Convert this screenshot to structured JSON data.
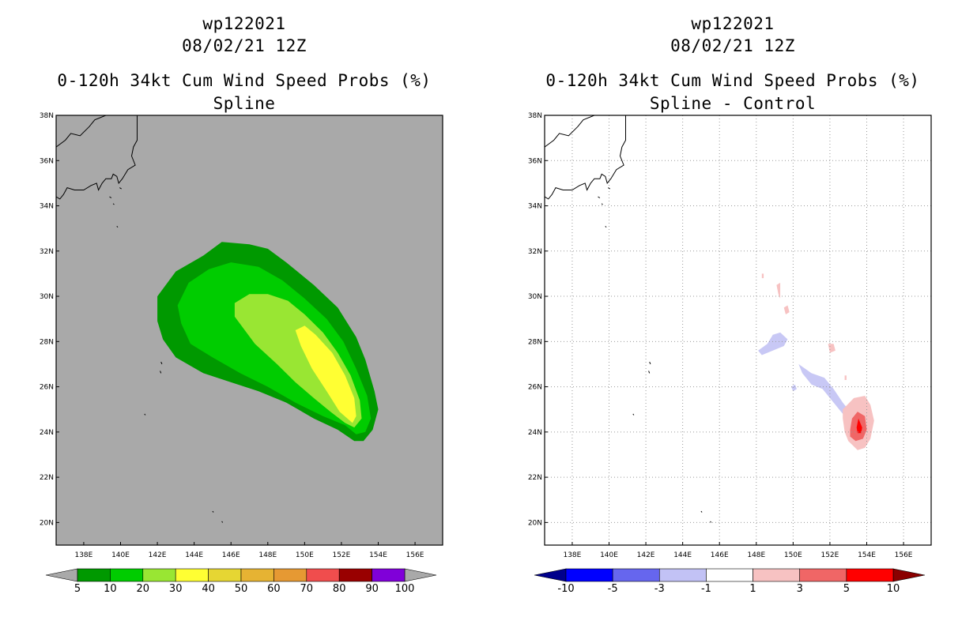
{
  "chart_data": [
    {
      "type": "heatmap",
      "id": "left",
      "title_lines": [
        "wp122021",
        "08/02/21 12Z",
        "0-120h 34kt Cum Wind Speed Probs (%)",
        "Spline"
      ],
      "xlabels": [
        "138E",
        "140E",
        "142E",
        "144E",
        "146E",
        "148E",
        "150E",
        "152E",
        "154E",
        "156E"
      ],
      "ylabels": [
        "20N",
        "22N",
        "24N",
        "26N",
        "28N",
        "30N",
        "32N",
        "34N",
        "36N",
        "38N"
      ],
      "xlim": [
        136.5,
        157.5
      ],
      "ylim": [
        19,
        38
      ],
      "grid": false,
      "background": "#a9a9a9",
      "colorbar": {
        "levels": [
          "5",
          "10",
          "20",
          "30",
          "40",
          "50",
          "60",
          "70",
          "80",
          "90",
          "100"
        ],
        "colors": [
          "#009900",
          "#00cc00",
          "#99e633",
          "#ffff33",
          "#e6d633",
          "#e6b333",
          "#e69933",
          "#f04d4d",
          "#990000",
          "#8000d9"
        ],
        "end_left": "#a9a9a9",
        "end_right": "#a9a9a9"
      },
      "contours": [
        {
          "level": "5-10",
          "color": "#009900",
          "points": [
            [
              142,
              28.9
            ],
            [
              142,
              30
            ],
            [
              143,
              31.1
            ],
            [
              144.5,
              31.8
            ],
            [
              145.5,
              32.4
            ],
            [
              147,
              32.3
            ],
            [
              148,
              32.1
            ],
            [
              149,
              31.5
            ],
            [
              150.5,
              30.5
            ],
            [
              151.8,
              29.5
            ],
            [
              152.8,
              28.2
            ],
            [
              153.3,
              27.2
            ],
            [
              153.8,
              25.8
            ],
            [
              154,
              25
            ],
            [
              153.7,
              24.1
            ],
            [
              153.2,
              23.6
            ],
            [
              152.7,
              23.6
            ],
            [
              151.8,
              24.1
            ],
            [
              150.5,
              24.6
            ],
            [
              149,
              25.3
            ],
            [
              147.5,
              25.8
            ],
            [
              146,
              26.2
            ],
            [
              144.5,
              26.6
            ],
            [
              143,
              27.3
            ],
            [
              142.3,
              28.1
            ]
          ]
        },
        {
          "level": "10-20",
          "color": "#00cc00",
          "points": [
            [
              143.3,
              28.8
            ],
            [
              143.1,
              29.6
            ],
            [
              143.7,
              30.6
            ],
            [
              144.8,
              31.2
            ],
            [
              146,
              31.5
            ],
            [
              147.5,
              31.3
            ],
            [
              148.8,
              30.7
            ],
            [
              150,
              29.9
            ],
            [
              151.2,
              29
            ],
            [
              152.1,
              28
            ],
            [
              152.8,
              26.8
            ],
            [
              153.4,
              25.6
            ],
            [
              153.6,
              24.6
            ],
            [
              153.3,
              24
            ],
            [
              152.8,
              23.9
            ],
            [
              152.2,
              24.3
            ],
            [
              151,
              24.7
            ],
            [
              149.5,
              25.3
            ],
            [
              148,
              26
            ],
            [
              146.5,
              26.6
            ],
            [
              145,
              27.3
            ],
            [
              143.8,
              27.9
            ]
          ]
        },
        {
          "level": "20-30",
          "color": "#99e633",
          "points": [
            [
              146.2,
              29.1
            ],
            [
              146.2,
              29.7
            ],
            [
              147,
              30.1
            ],
            [
              148,
              30.1
            ],
            [
              149.1,
              29.8
            ],
            [
              150,
              29.2
            ],
            [
              151,
              28.4
            ],
            [
              151.8,
              27.5
            ],
            [
              152.5,
              26.5
            ],
            [
              153,
              25.4
            ],
            [
              153.1,
              24.6
            ],
            [
              152.7,
              24.2
            ],
            [
              152.2,
              24.4
            ],
            [
              151.4,
              24.9
            ],
            [
              150.5,
              25.5
            ],
            [
              149.5,
              26.2
            ],
            [
              148.5,
              27
            ],
            [
              147.3,
              27.9
            ]
          ]
        },
        {
          "level": "30-40",
          "color": "#ffff33",
          "points": [
            [
              149.5,
              28.5
            ],
            [
              149.8,
              27.8
            ],
            [
              150.4,
              26.8
            ],
            [
              151.2,
              25.8
            ],
            [
              151.9,
              24.9
            ],
            [
              152.6,
              24.4
            ],
            [
              152.8,
              24.7
            ],
            [
              152.7,
              25.5
            ],
            [
              152.2,
              26.5
            ],
            [
              151.5,
              27.5
            ],
            [
              150.6,
              28.3
            ],
            [
              150,
              28.7
            ]
          ]
        }
      ]
    },
    {
      "type": "heatmap",
      "id": "right",
      "title_lines": [
        "wp122021",
        "08/02/21 12Z",
        "0-120h 34kt Cum Wind Speed Probs (%)",
        "Spline - Control"
      ],
      "xlabels": [
        "138E",
        "140E",
        "142E",
        "144E",
        "146E",
        "148E",
        "150E",
        "152E",
        "154E",
        "156E"
      ],
      "ylabels": [
        "20N",
        "22N",
        "24N",
        "26N",
        "28N",
        "30N",
        "32N",
        "34N",
        "36N",
        "38N"
      ],
      "xlim": [
        136.5,
        157.5
      ],
      "ylim": [
        19,
        38
      ],
      "grid": true,
      "background": "#ffffff",
      "colorbar": {
        "levels": [
          "-10",
          "-5",
          "-3",
          "-1",
          "1",
          "3",
          "5",
          "10"
        ],
        "colors": [
          "#0000ff",
          "#6666ee",
          "#c2c2f5",
          "#ffffff",
          "#f7c2c2",
          "#f06666",
          "#ff0000"
        ],
        "end_left": "#00008b",
        "end_right": "#8b0000"
      },
      "contours": [
        {
          "level": "-3--1",
          "color": "#c8c8f5",
          "points": [
            [
              148.1,
              27.6
            ],
            [
              148.6,
              27.9
            ],
            [
              148.9,
              28.3
            ],
            [
              149.3,
              28.4
            ],
            [
              149.7,
              28.1
            ],
            [
              149.5,
              27.8
            ],
            [
              148.9,
              27.6
            ],
            [
              148.3,
              27.4
            ]
          ]
        },
        {
          "level": "-3--1",
          "color": "#c8c8f5",
          "points": [
            [
              150.3,
              27
            ],
            [
              151,
              26.6
            ],
            [
              151.7,
              26.4
            ],
            [
              152.2,
              25.9
            ],
            [
              152.7,
              25.3
            ],
            [
              153.1,
              24.9
            ],
            [
              152.8,
              24.7
            ],
            [
              152.2,
              25.3
            ],
            [
              151.6,
              25.9
            ],
            [
              151,
              26.1
            ],
            [
              150.5,
              26.6
            ]
          ]
        },
        {
          "level": "-3--1",
          "color": "#c8c8f5",
          "points": [
            [
              149.9,
              26
            ],
            [
              150.1,
              26.1
            ],
            [
              150.2,
              25.9
            ],
            [
              150,
              25.8
            ]
          ]
        },
        {
          "level": "1-3",
          "color": "#f7c2c2",
          "points": [
            [
              151.9,
              27.9
            ],
            [
              152.2,
              27.9
            ],
            [
              152.3,
              27.6
            ],
            [
              152,
              27.5
            ]
          ]
        },
        {
          "level": "1-3",
          "color": "#f7c2c2",
          "points": [
            [
              149.1,
              30.5
            ],
            [
              149.3,
              30.6
            ],
            [
              149.3,
              29.9
            ],
            [
              149.2,
              30.1
            ]
          ]
        },
        {
          "level": "1-3",
          "color": "#f7c2c2",
          "points": [
            [
              149.5,
              29.5
            ],
            [
              149.7,
              29.6
            ],
            [
              149.8,
              29.3
            ],
            [
              149.6,
              29.2
            ]
          ]
        },
        {
          "level": "1-3",
          "color": "#f7c2c2",
          "points": [
            [
              148.3,
              31
            ],
            [
              148.4,
              31
            ],
            [
              148.4,
              30.8
            ],
            [
              148.3,
              30.8
            ]
          ]
        },
        {
          "level": "1-3",
          "color": "#f7c2c2",
          "points": [
            [
              152.8,
              26.5
            ],
            [
              152.9,
              26.5
            ],
            [
              152.9,
              26.3
            ],
            [
              152.8,
              26.3
            ]
          ]
        },
        {
          "level": "1-3",
          "color": "#f7c2c2",
          "points": [
            [
              152.7,
              24.6
            ],
            [
              152.7,
              25
            ],
            [
              153.3,
              25.5
            ],
            [
              153.9,
              25.6
            ],
            [
              154.2,
              25.2
            ],
            [
              154.4,
              24.5
            ],
            [
              154.2,
              23.7
            ],
            [
              153.9,
              23.3
            ],
            [
              153.5,
              23.2
            ],
            [
              153,
              23.6
            ],
            [
              152.8,
              24
            ]
          ]
        },
        {
          "level": "3-5",
          "color": "#f06666",
          "points": [
            [
              153.1,
              24.1
            ],
            [
              153.2,
              24.6
            ],
            [
              153.5,
              24.9
            ],
            [
              153.9,
              24.7
            ],
            [
              154,
              24.1
            ],
            [
              153.8,
              23.7
            ],
            [
              153.4,
              23.6
            ],
            [
              153.1,
              23.8
            ]
          ]
        },
        {
          "level": "5-10",
          "color": "#ff0000",
          "points": [
            [
              153.45,
              24.2
            ],
            [
              153.55,
              24.6
            ],
            [
              153.75,
              24.2
            ],
            [
              153.7,
              23.95
            ],
            [
              153.5,
              23.95
            ]
          ]
        }
      ]
    }
  ]
}
